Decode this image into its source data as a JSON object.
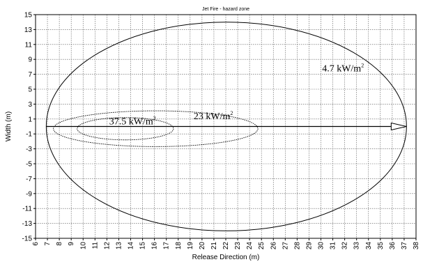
{
  "chart_data": {
    "type": "line",
    "title": "Jet Fire - hazard zone",
    "xlabel": "Release Direction (m)",
    "ylabel": "Width (m)",
    "xlim": [
      6,
      38
    ],
    "ylim": [
      -15,
      15
    ],
    "xticks": [
      6,
      7,
      8,
      9,
      10,
      11,
      12,
      13,
      14,
      15,
      16,
      17,
      18,
      19,
      20,
      21,
      22,
      23,
      24,
      25,
      26,
      27,
      28,
      29,
      30,
      31,
      32,
      33,
      34,
      35,
      36,
      37,
      38
    ],
    "yticks": [
      15,
      13,
      11,
      9,
      7,
      5,
      3,
      1,
      -1,
      -3,
      -5,
      -7,
      -9,
      -11,
      -13,
      -15
    ],
    "grid": true,
    "series": [
      {
        "name": "4.7 kW/m2",
        "shape": "ellipse",
        "x_range": [
          6.9,
          37.2
        ],
        "y_range": [
          -14,
          14
        ]
      },
      {
        "name": "23 kW/m2",
        "shape": "ellipse",
        "x_range": [
          7.5,
          24.7
        ],
        "y_range": [
          -2.7,
          2.1
        ]
      },
      {
        "name": "37.5 kW/m2",
        "shape": "ellipse",
        "x_range": [
          9.5,
          17.6
        ],
        "y_range": [
          -1.8,
          1.2
        ]
      }
    ],
    "annotations": [
      {
        "text": "4.7 kW/m",
        "sup": "2",
        "x": 30.1,
        "y": 7.4
      },
      {
        "text": "23 kW/m",
        "sup": "2",
        "x": 19.3,
        "y": 1.0
      },
      {
        "text": "37.5 kW/m",
        "sup": "2",
        "x": 12.2,
        "y": 0.3
      }
    ],
    "release_arrow": {
      "from": [
        6.9,
        0
      ],
      "to": [
        37.2,
        0
      ]
    }
  }
}
